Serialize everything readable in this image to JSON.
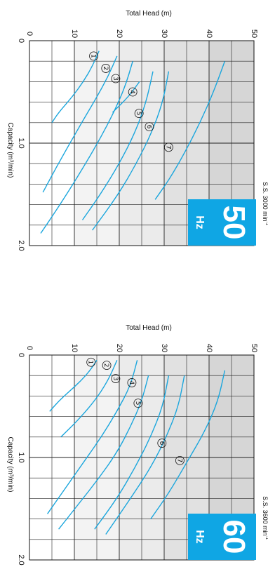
{
  "chart_data": [
    {
      "type": "line",
      "orientation": "rotated-90",
      "xlabel": "Capacity (m³/min)",
      "ylabel": "Total Head (m)",
      "x_ticks": [
        "0",
        "1.0",
        "2.0"
      ],
      "y_ticks": [
        "0",
        "10",
        "20",
        "30",
        "40",
        "50"
      ],
      "xlim": [
        0,
        2.0
      ],
      "ylim": [
        0,
        50
      ],
      "badge_frequency": "50",
      "badge_unit": "Hz",
      "speed": {
        "prefix": "S.S. 3000 min",
        "exp": "-1"
      },
      "badge_color": "#0fa6e4",
      "curve_color": "#1aa6dd",
      "grid": true,
      "series": [
        {
          "label": "①",
          "x": [
            0.1,
            0.25,
            0.4,
            0.55,
            0.7,
            0.8
          ],
          "y": [
            15.5,
            14.0,
            12.0,
            9.5,
            6.5,
            5.0
          ],
          "label_at": [
            0.15,
            14.3
          ]
        },
        {
          "label": "②",
          "x": [
            0.15,
            0.35,
            0.55,
            0.75,
            1.0,
            1.25,
            1.48
          ],
          "y": [
            19.5,
            17.5,
            15.0,
            12.3,
            9.0,
            5.8,
            3.0
          ],
          "label_at": [
            0.27,
            17.0
          ]
        },
        {
          "label": "③",
          "x": [
            0.2,
            0.45,
            0.7,
            0.95,
            1.2,
            1.45,
            1.7,
            1.88
          ],
          "y": [
            23.0,
            21.3,
            18.8,
            15.8,
            12.5,
            9.0,
            5.3,
            2.5
          ],
          "label_at": [
            0.37,
            19.2
          ]
        },
        {
          "label": "④",
          "x": [
            0.4,
            0.55,
            0.7
          ],
          "y": [
            24.5,
            22.0,
            18.5
          ],
          "label_at": [
            0.5,
            23.0
          ]
        },
        {
          "label": "⑤",
          "x": [
            0.3,
            0.6,
            0.9,
            1.2,
            1.5,
            1.75
          ],
          "y": [
            27.5,
            26.0,
            23.5,
            20.0,
            15.8,
            11.8
          ],
          "label_at": [
            0.71,
            24.4
          ]
        },
        {
          "label": "⑥",
          "x": [
            0.3,
            0.6,
            0.9,
            1.2,
            1.5,
            1.85
          ],
          "y": [
            31.0,
            29.7,
            27.2,
            23.8,
            19.8,
            14.0
          ],
          "label_at": [
            0.84,
            26.7
          ]
        },
        {
          "label": "⑦",
          "x": [
            0.2,
            0.5,
            0.8,
            1.1,
            1.35,
            1.55
          ],
          "y": [
            43.5,
            41.0,
            38.0,
            34.5,
            31.2,
            28.0
          ],
          "label_at": [
            1.04,
            31.0
          ]
        }
      ]
    },
    {
      "type": "line",
      "orientation": "rotated-90",
      "xlabel": "Capacity (m³/min)",
      "ylabel": "Total Head (m)",
      "x_ticks": [
        "0",
        "1.0",
        "2.0"
      ],
      "y_ticks": [
        "0",
        "10",
        "20",
        "30",
        "40",
        "50"
      ],
      "xlim": [
        0,
        2.0
      ],
      "ylim": [
        0,
        50
      ],
      "badge_frequency": "60",
      "badge_unit": "Hz",
      "speed": {
        "prefix": "S.S. 3600 min",
        "exp": "-1"
      },
      "badge_color": "#0fa6e4",
      "curve_color": "#1aa6dd",
      "grid": true,
      "series": [
        {
          "label": "①",
          "x": [
            0.05,
            0.15,
            0.25,
            0.35,
            0.45,
            0.55
          ],
          "y": [
            15.0,
            13.5,
            11.5,
            9.0,
            6.5,
            4.5
          ],
          "label_at": [
            0.07,
            13.7
          ]
        },
        {
          "label": "②",
          "x": [
            0.05,
            0.25,
            0.45,
            0.65,
            0.8
          ],
          "y": [
            19.5,
            17.5,
            14.5,
            10.5,
            7.0
          ],
          "label_at": [
            0.1,
            17.2
          ]
        },
        {
          "label": "③",
          "x": [
            0.05,
            0.3,
            0.55,
            0.8,
            1.05,
            1.3,
            1.55
          ],
          "y": [
            24.0,
            22.5,
            19.5,
            16.0,
            12.0,
            8.0,
            4.0
          ],
          "label_at": [
            0.23,
            19.2
          ]
        },
        {
          "label": "④",
          "x": [
            0.2,
            0.45,
            0.7,
            0.95,
            1.2,
            1.45,
            1.7
          ],
          "y": [
            26.5,
            25.0,
            22.5,
            19.5,
            15.5,
            11.0,
            6.5
          ],
          "label_at": [
            0.27,
            22.8
          ]
        },
        {
          "label": "⑤",
          "x": [
            0.2,
            0.5,
            0.8,
            1.1,
            1.4,
            1.7
          ],
          "y": [
            31.0,
            29.7,
            27.0,
            23.5,
            19.5,
            14.5
          ],
          "label_at": [
            0.47,
            24.2
          ]
        },
        {
          "label": "⑥",
          "x": [
            0.2,
            0.5,
            0.8,
            1.1,
            1.4,
            1.75
          ],
          "y": [
            34.5,
            33.2,
            30.5,
            27.0,
            22.5,
            17.0
          ],
          "label_at": [
            0.86,
            29.5
          ]
        },
        {
          "label": "⑦",
          "x": [
            0.15,
            0.45,
            0.75,
            1.05,
            1.35,
            1.6
          ],
          "y": [
            43.5,
            42.0,
            39.0,
            35.0,
            31.0,
            27.0
          ],
          "label_at": [
            1.03,
            33.5
          ]
        }
      ]
    }
  ]
}
